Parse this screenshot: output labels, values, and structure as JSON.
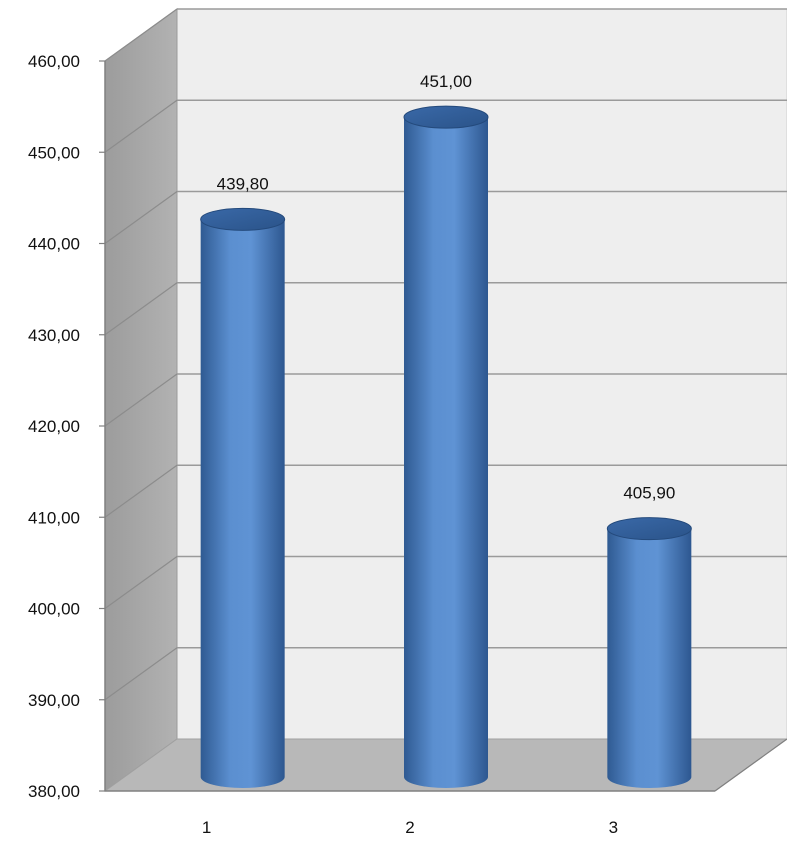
{
  "chart_data": {
    "type": "bar",
    "style": "3d-cylinder",
    "categories": [
      "1",
      "2",
      "3"
    ],
    "values": [
      439.8,
      451.0,
      405.9
    ],
    "data_labels": [
      "439,80",
      "451,00",
      "405,90"
    ],
    "title": "",
    "xlabel": "",
    "ylabel": "",
    "ylim": [
      380,
      460
    ],
    "y_ticks": [
      380,
      390,
      400,
      410,
      420,
      430,
      440,
      450,
      460
    ],
    "y_tick_labels": [
      "380,00",
      "390,00",
      "400,00",
      "410,00",
      "420,00",
      "430,00",
      "440,00",
      "450,00",
      "460,00"
    ],
    "grid": true,
    "legend": "none",
    "colors": {
      "bar": "#4f81bd",
      "wall_back": "#eeeeee",
      "wall_side": "#a6a6a6",
      "floor": "#b8b8b8",
      "gridline": "#9a9a9a"
    }
  }
}
